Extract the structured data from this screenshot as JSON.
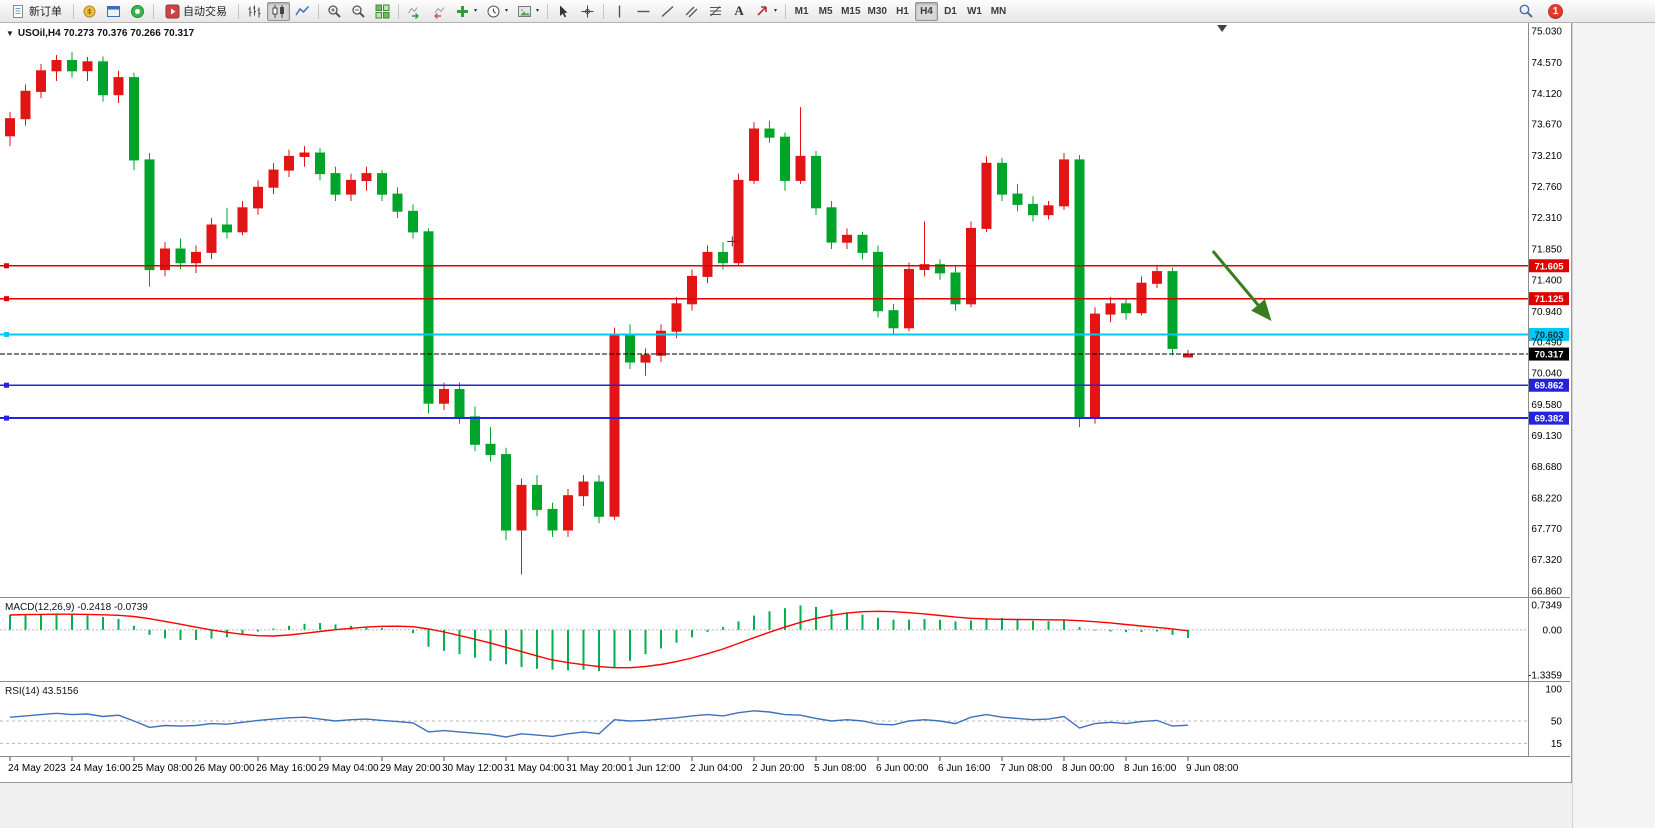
{
  "toolbar": {
    "new_order_label": "新订单",
    "autotrading_label": "自动交易",
    "text_tool_label": "A",
    "timeframes": [
      "M1",
      "M5",
      "M15",
      "M30",
      "H1",
      "H4",
      "D1",
      "W1",
      "MN"
    ],
    "active_timeframe": "H4",
    "notification_count": "1"
  },
  "chart": {
    "symbol": "USOil",
    "period": "H4",
    "ohlc": {
      "open": "70.273",
      "high": "70.376",
      "low": "70.266",
      "close": "70.317"
    },
    "title_line": "USOil,H4 70.273 70.376 70.266 70.317"
  },
  "colors": {
    "bull": "#e21414",
    "bear": "#00a42a",
    "background": "#ffffff",
    "axis_text": "#000000",
    "separator": "#8c8c8c"
  },
  "chart_data": {
    "type": "candlestick",
    "symbol": "USOil",
    "period": "H4",
    "ylim": [
      66.86,
      75.03
    ],
    "y_ticks": [
      "75.030",
      "74.570",
      "74.120",
      "73.670",
      "73.210",
      "72.760",
      "72.310",
      "71.850",
      "71.400",
      "70.940",
      "70.490",
      "70.040",
      "69.580",
      "69.130",
      "68.680",
      "68.220",
      "67.770",
      "67.320",
      "66.860"
    ],
    "x_labels": [
      "24 May 2023",
      "24 May 16:00",
      "25 May 08:00",
      "26 May 00:00",
      "26 May 16:00",
      "29 May 04:00",
      "29 May 20:00",
      "30 May 12:00",
      "31 May 04:00",
      "31 May 20:00",
      "1 Jun 12:00",
      "2 Jun 04:00",
      "2 Jun 20:00",
      "5 Jun 08:00",
      "6 Jun 00:00",
      "6 Jun 16:00",
      "7 Jun 08:00",
      "8 Jun 00:00",
      "8 Jun 16:00",
      "9 Jun 08:00"
    ],
    "bars_per_label": 4,
    "candles": [
      [
        73.5,
        73.85,
        73.35,
        73.75
      ],
      [
        73.75,
        74.25,
        73.65,
        74.15
      ],
      [
        74.15,
        74.55,
        74.05,
        74.45
      ],
      [
        74.45,
        74.68,
        74.3,
        74.6
      ],
      [
        74.6,
        74.72,
        74.35,
        74.45
      ],
      [
        74.45,
        74.65,
        74.3,
        74.58
      ],
      [
        74.58,
        74.66,
        74.0,
        74.1
      ],
      [
        74.1,
        74.45,
        73.98,
        74.35
      ],
      [
        74.35,
        74.42,
        73.0,
        73.15
      ],
      [
        73.15,
        73.25,
        71.3,
        71.55
      ],
      [
        71.55,
        71.95,
        71.45,
        71.85
      ],
      [
        71.85,
        72.0,
        71.55,
        71.65
      ],
      [
        71.65,
        71.9,
        71.5,
        71.8
      ],
      [
        71.8,
        72.3,
        71.7,
        72.2
      ],
      [
        72.2,
        72.45,
        72.0,
        72.1
      ],
      [
        72.1,
        72.55,
        72.05,
        72.45
      ],
      [
        72.45,
        72.85,
        72.35,
        72.75
      ],
      [
        72.75,
        73.1,
        72.65,
        73.0
      ],
      [
        73.0,
        73.3,
        72.9,
        73.2
      ],
      [
        73.2,
        73.35,
        73.05,
        73.25
      ],
      [
        73.25,
        73.32,
        72.85,
        72.95
      ],
      [
        72.95,
        73.05,
        72.55,
        72.65
      ],
      [
        72.65,
        72.95,
        72.55,
        72.85
      ],
      [
        72.85,
        73.05,
        72.7,
        72.95
      ],
      [
        72.95,
        73.0,
        72.55,
        72.65
      ],
      [
        72.65,
        72.75,
        72.3,
        72.4
      ],
      [
        72.4,
        72.5,
        72.0,
        72.1
      ],
      [
        72.1,
        72.15,
        69.45,
        69.6
      ],
      [
        69.6,
        69.9,
        69.5,
        69.8
      ],
      [
        69.8,
        69.9,
        69.3,
        69.4
      ],
      [
        69.4,
        69.55,
        68.9,
        69.0
      ],
      [
        69.0,
        69.25,
        68.75,
        68.85
      ],
      [
        68.85,
        68.95,
        67.6,
        67.75
      ],
      [
        67.75,
        68.5,
        67.1,
        68.4
      ],
      [
        68.4,
        68.55,
        67.95,
        68.05
      ],
      [
        68.05,
        68.15,
        67.65,
        67.75
      ],
      [
        67.75,
        68.35,
        67.65,
        68.25
      ],
      [
        68.25,
        68.55,
        68.1,
        68.45
      ],
      [
        68.45,
        68.55,
        67.85,
        67.95
      ],
      [
        67.95,
        70.7,
        67.9,
        70.6
      ],
      [
        70.6,
        70.75,
        70.1,
        70.2
      ],
      [
        70.2,
        70.4,
        70.0,
        70.3
      ],
      [
        70.3,
        70.75,
        70.2,
        70.65
      ],
      [
        70.65,
        71.15,
        70.55,
        71.05
      ],
      [
        71.05,
        71.55,
        70.95,
        71.45
      ],
      [
        71.45,
        71.9,
        71.35,
        71.8
      ],
      [
        71.8,
        71.95,
        71.55,
        71.65
      ],
      [
        71.65,
        72.95,
        71.6,
        72.85
      ],
      [
        72.85,
        73.7,
        72.8,
        73.6
      ],
      [
        73.6,
        73.72,
        73.4,
        73.48
      ],
      [
        73.48,
        73.55,
        72.7,
        72.85
      ],
      [
        72.85,
        73.92,
        72.8,
        73.2
      ],
      [
        73.2,
        73.28,
        72.35,
        72.45
      ],
      [
        72.45,
        72.55,
        71.85,
        71.95
      ],
      [
        71.95,
        72.15,
        71.85,
        72.05
      ],
      [
        72.05,
        72.1,
        71.7,
        71.8
      ],
      [
        71.8,
        71.9,
        70.85,
        70.95
      ],
      [
        70.95,
        71.05,
        70.6,
        70.7
      ],
      [
        70.7,
        71.65,
        70.65,
        71.55
      ],
      [
        71.55,
        72.25,
        71.45,
        71.62
      ],
      [
        71.62,
        71.7,
        71.4,
        71.5
      ],
      [
        71.5,
        71.6,
        70.95,
        71.05
      ],
      [
        71.05,
        72.25,
        71.0,
        72.15
      ],
      [
        72.15,
        73.2,
        72.1,
        73.1
      ],
      [
        73.1,
        73.18,
        72.55,
        72.65
      ],
      [
        72.65,
        72.8,
        72.4,
        72.5
      ],
      [
        72.5,
        72.62,
        72.25,
        72.35
      ],
      [
        72.35,
        72.55,
        72.28,
        72.48
      ],
      [
        72.48,
        73.25,
        72.42,
        73.15
      ],
      [
        73.15,
        73.22,
        69.25,
        69.4
      ],
      [
        69.4,
        71.0,
        69.3,
        70.9
      ],
      [
        70.9,
        71.15,
        70.78,
        71.05
      ],
      [
        71.05,
        71.12,
        70.82,
        70.92
      ],
      [
        70.92,
        71.45,
        70.88,
        71.35
      ],
      [
        71.35,
        71.62,
        71.28,
        71.52
      ],
      [
        71.52,
        71.58,
        70.3,
        70.4
      ],
      [
        70.273,
        70.376,
        70.266,
        70.317
      ]
    ],
    "indicators": [
      {
        "type": "macd",
        "label": "MACD(12,26,9) -0.2418 -0.0739",
        "params": "12,26,9",
        "main_last": -0.2418,
        "signal_last": -0.0739,
        "ylim": [
          -1.3359,
          0.7349
        ],
        "y_ticks": [
          "0.7349",
          "0.00",
          "-1.3359"
        ],
        "hist_color": "#00b050",
        "signal_color": "#ff0000",
        "values": [
          0.44,
          0.46,
          0.47,
          0.48,
          0.46,
          0.43,
          0.38,
          0.32,
          0.12,
          -0.15,
          -0.25,
          -0.3,
          -0.3,
          -0.26,
          -0.22,
          -0.14,
          -0.05,
          0.04,
          0.12,
          0.18,
          0.2,
          0.16,
          0.12,
          0.1,
          0.06,
          0.0,
          -0.1,
          -0.5,
          -0.62,
          -0.72,
          -0.82,
          -0.92,
          -1.02,
          -1.1,
          -1.15,
          -1.18,
          -1.2,
          -1.18,
          -1.22,
          -1.1,
          -0.92,
          -0.72,
          -0.55,
          -0.38,
          -0.22,
          -0.06,
          0.08,
          0.25,
          0.42,
          0.55,
          0.64,
          0.72,
          0.68,
          0.6,
          0.52,
          0.45,
          0.36,
          0.3,
          0.3,
          0.32,
          0.3,
          0.25,
          0.28,
          0.34,
          0.35,
          0.31,
          0.27,
          0.26,
          0.3,
          0.08,
          -0.02,
          -0.05,
          -0.07,
          -0.06,
          -0.05,
          -0.15,
          -0.2418
        ]
      },
      {
        "type": "rsi",
        "label": "RSI(14) 43.5156",
        "params": "14",
        "last": 43.5156,
        "ylim": [
          0,
          100
        ],
        "y_ticks": [
          "100",
          "50",
          "15"
        ],
        "levels": [
          50,
          15
        ],
        "color": "#3e6fbe",
        "values": [
          56,
          58,
          60,
          62,
          60,
          61,
          57,
          59,
          50,
          40,
          43,
          42,
          43,
          46,
          45,
          48,
          51,
          53,
          55,
          56,
          53,
          50,
          52,
          53,
          51,
          49,
          47,
          33,
          35,
          33,
          31,
          29,
          25,
          30,
          28,
          26,
          30,
          33,
          30,
          52,
          50,
          51,
          53,
          55,
          58,
          60,
          58,
          63,
          66,
          64,
          60,
          59,
          54,
          50,
          52,
          50,
          45,
          44,
          50,
          52,
          50,
          46,
          56,
          60,
          56,
          54,
          52,
          53,
          57,
          39,
          46,
          48,
          46,
          49,
          51,
          42,
          43.5156
        ]
      }
    ],
    "overlays": {
      "h_lines": [
        {
          "label": "71.605",
          "value": 71.605,
          "color": "#e00000",
          "badge_text": "#ffffff",
          "width": 1.4
        },
        {
          "label": "71.125",
          "value": 71.125,
          "color": "#e00000",
          "badge_text": "#ffffff",
          "width": 1.4
        },
        {
          "label": "70.603",
          "value": 70.603,
          "color": "#00c8f0",
          "badge_text": "#00303a",
          "width": 2
        },
        {
          "label": "69.862",
          "value": 69.862,
          "color": "#2424d6",
          "badge_text": "#ffffff",
          "width": 1.6
        },
        {
          "label": "69.382",
          "value": 69.382,
          "color": "#2424e0",
          "badge_text": "#ffffff",
          "width": 2
        }
      ],
      "current_price": {
        "label": "70.317",
        "value": 70.317,
        "color": "#000000",
        "badge_text": "#ffffff"
      },
      "arrow": {
        "from_bar": 77.6,
        "from_price": 71.82,
        "to_bar": 81.2,
        "to_price": 70.85,
        "color": "#3a7d1f"
      },
      "cross_marker": {
        "bar": 46.6,
        "price": 71.96
      },
      "shift_marker": {
        "bar": 78.2
      }
    }
  }
}
